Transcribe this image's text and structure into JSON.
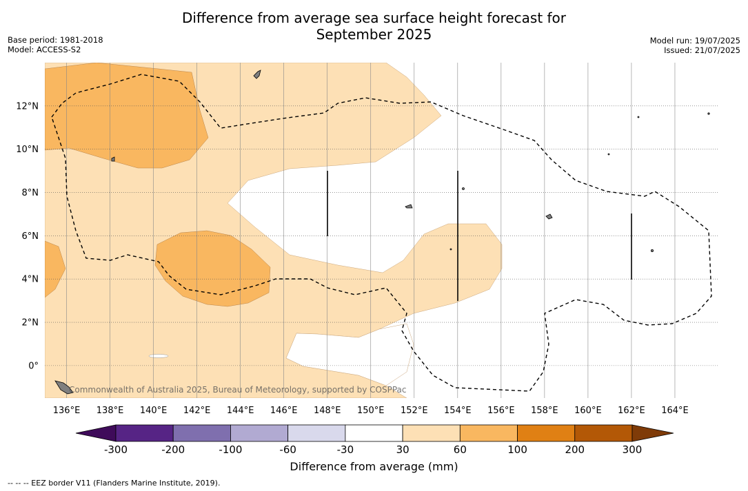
{
  "title": {
    "line1": "Difference from average sea surface height forecast for",
    "line2": "September 2025"
  },
  "meta_left": {
    "base_period": "Base period: 1981-2018",
    "model": "Model: ACCESS-S2"
  },
  "meta_right": {
    "model_run": "Model run: 19/07/2025",
    "issued": "Issued: 21/07/2025"
  },
  "map": {
    "lon_range": [
      135,
      166
    ],
    "lat_range": [
      -1.5,
      14
    ],
    "lat_labels": [
      "12°N",
      "10°N",
      "8°N",
      "6°N",
      "4°N",
      "2°N",
      "0°"
    ],
    "lon_labels": [
      "136°E",
      "138°E",
      "140°E",
      "142°E",
      "144°E",
      "146°E",
      "148°E",
      "150°E",
      "152°E",
      "154°E",
      "156°E",
      "158°E",
      "160°E",
      "162°E",
      "164°E"
    ],
    "copyright": "Commonwealth of Australia 2025, Bureau of Meteorology, supported by COSPPac",
    "colors": {
      "anom_30_60": "#fde0b5",
      "anom_60_100": "#f9b760",
      "land": "#7f7f7f",
      "eez_border": "#000000"
    },
    "lines_shown": "EEZ border (dashed)"
  },
  "colorbar": {
    "label": "Difference from average (mm)",
    "ticks": [
      "-300",
      "-200",
      "-100",
      "-60",
      "-30",
      "30",
      "60",
      "100",
      "200",
      "300"
    ],
    "colors": [
      "#3f0b5a",
      "#562485",
      "#7f6fae",
      "#b1aad2",
      "#d9d9ec",
      "#ffffff",
      "#fde0b5",
      "#f9b760",
      "#e08014",
      "#b35806",
      "#7f3b08"
    ]
  },
  "footnote": "-- -- -- EEZ border V11 (Flanders Marine Institute, 2019)."
}
